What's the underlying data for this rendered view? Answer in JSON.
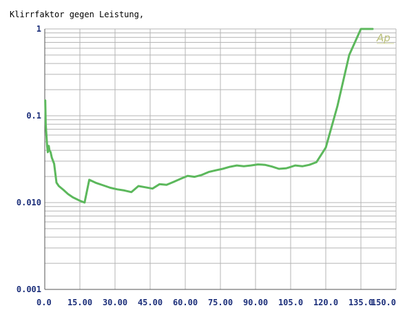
{
  "chart_data": {
    "type": "line",
    "title": "Klirrfaktor gegen Leistung,",
    "xlabel": "",
    "ylabel": "",
    "xlim": [
      0,
      150
    ],
    "ylim": [
      0.001,
      1
    ],
    "yscale": "log",
    "grid": true,
    "legend": "none",
    "logo_text": "Ap",
    "x_tick_labels": [
      "0.0",
      "15.00",
      "30.00",
      "45.00",
      "60.00",
      "75.00",
      "90.00",
      "105.0",
      "120.0",
      "135.0",
      "150.0"
    ],
    "x_tick_values": [
      0,
      15,
      30,
      45,
      60,
      75,
      90,
      105,
      120,
      135,
      150
    ],
    "y_tick_labels": [
      "1",
      "0.1",
      "0.010",
      "0.001"
    ],
    "y_tick_values": [
      1,
      0.1,
      0.01,
      0.001
    ],
    "line_color": "#5cb85c",
    "grid_color": "#b4b4b4",
    "series": [
      {
        "x": [
          0.2,
          0.4,
          0.7,
          1.0,
          1.3,
          1.7,
          2.0,
          2.5,
          3.0,
          4.0,
          5.0,
          6.0,
          8.0,
          10.0,
          12.0,
          15.0,
          17.0,
          19.0,
          22.0,
          25.0,
          28.0,
          31.0,
          34.0,
          37.0,
          40.0,
          43.0,
          46.0,
          49.0,
          52.0,
          55.0,
          58.0,
          61.0,
          64.0,
          67.0,
          70.0,
          73.0,
          76.0,
          79.0,
          82.0,
          85.0,
          88.0,
          91.0,
          94.0,
          97.0,
          100.0,
          103.0,
          104.5,
          107.0,
          110.0,
          113.0,
          116.0,
          120.0,
          125.0,
          130.0,
          135.0,
          138.0,
          140.0
        ],
        "y": [
          0.15,
          0.08,
          0.06,
          0.045,
          0.038,
          0.045,
          0.04,
          0.038,
          0.033,
          0.028,
          0.017,
          0.0155,
          0.014,
          0.0125,
          0.0115,
          0.0105,
          0.01,
          0.0183,
          0.0168,
          0.0158,
          0.0148,
          0.0142,
          0.0138,
          0.0132,
          0.0155,
          0.015,
          0.0145,
          0.0163,
          0.016,
          0.0173,
          0.0188,
          0.0203,
          0.0198,
          0.0208,
          0.0225,
          0.0235,
          0.0245,
          0.0258,
          0.0268,
          0.0262,
          0.0268,
          0.0275,
          0.0272,
          0.026,
          0.0245,
          0.0248,
          0.0255,
          0.0268,
          0.0262,
          0.0272,
          0.0292,
          0.043,
          0.13,
          0.5,
          1.05,
          1.0,
          1.0
        ]
      }
    ]
  }
}
